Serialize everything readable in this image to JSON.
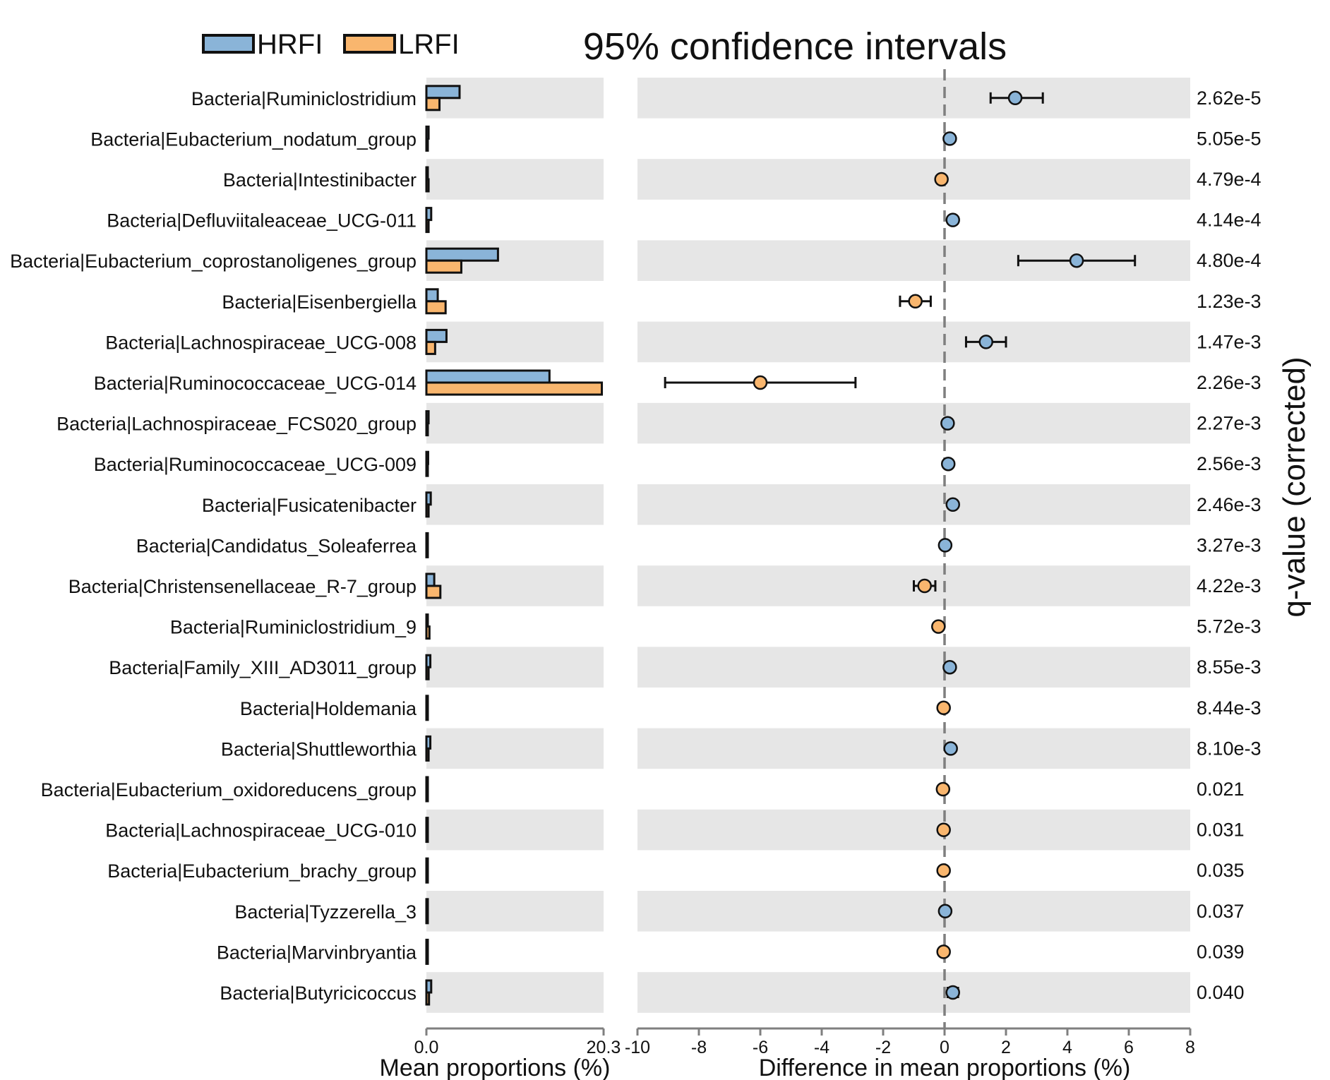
{
  "chart_data": {
    "type": "extended-error-bar",
    "title": "95% confidence intervals",
    "legend": [
      {
        "name": "HRFI",
        "color": "#8ab4d8"
      },
      {
        "name": "LRFI",
        "color": "#f9b66e"
      }
    ],
    "colors": {
      "HRFI": "#8ab4d8",
      "LRFI": "#f9b66e",
      "band": "#e6e6e6",
      "axis": "#7f7f7f"
    },
    "left_panel": {
      "xlabel": "Mean proportions (%)",
      "xlim": [
        0,
        20.3
      ],
      "tick_labels": [
        "0.0",
        "20.3"
      ]
    },
    "right_panel": {
      "xlabel": "Difference in mean proportions (%)",
      "xlim": [
        -10,
        8
      ],
      "tick_labels": [
        "-10",
        "-8",
        "-6",
        "-4",
        "-2",
        "0",
        "2",
        "4",
        "6",
        "8"
      ]
    },
    "qvalue_label": "q-value (corrected)",
    "rows": [
      {
        "label": "Bacteria|Ruminiclostridium",
        "hrfi": 3.8,
        "lrfi": 1.5,
        "diff": 2.3,
        "ci": [
          1.5,
          3.2
        ],
        "group": "HRFI",
        "q": "2.62e-5"
      },
      {
        "label": "Bacteria|Eubacterium_nodatum_group",
        "hrfi": 0.25,
        "lrfi": 0.1,
        "diff": 0.17,
        "ci": [
          0.1,
          0.24
        ],
        "group": "HRFI",
        "q": "5.05e-5"
      },
      {
        "label": "Bacteria|Intestinibacter",
        "hrfi": 0.1,
        "lrfi": 0.25,
        "diff": -0.1,
        "ci": [
          -0.16,
          -0.04
        ],
        "group": "LRFI",
        "q": "4.79e-4"
      },
      {
        "label": "Bacteria|Defluviitaleaceae_UCG-011",
        "hrfi": 0.55,
        "lrfi": 0.25,
        "diff": 0.27,
        "ci": [
          0.18,
          0.36
        ],
        "group": "HRFI",
        "q": "4.14e-4"
      },
      {
        "label": "Bacteria|Eubacterium_coprostanoligenes_group",
        "hrfi": 8.2,
        "lrfi": 4.0,
        "diff": 4.3,
        "ci": [
          2.4,
          6.2
        ],
        "group": "HRFI",
        "q": "4.80e-4"
      },
      {
        "label": "Bacteria|Eisenbergiella",
        "hrfi": 1.3,
        "lrfi": 2.2,
        "diff": -0.95,
        "ci": [
          -1.45,
          -0.45
        ],
        "group": "LRFI",
        "q": "1.23e-3"
      },
      {
        "label": "Bacteria|Lachnospiraceae_UCG-008",
        "hrfi": 2.3,
        "lrfi": 1.0,
        "diff": 1.35,
        "ci": [
          0.7,
          2.0
        ],
        "group": "HRFI",
        "q": "1.47e-3"
      },
      {
        "label": "Bacteria|Ruminococcaceae_UCG-014",
        "hrfi": 14.1,
        "lrfi": 20.1,
        "diff": -6.0,
        "ci": [
          -9.1,
          -2.9
        ],
        "group": "LRFI",
        "q": "2.26e-3"
      },
      {
        "label": "Bacteria|Lachnospiraceae_FCS020_group",
        "hrfi": 0.25,
        "lrfi": 0.1,
        "diff": 0.1,
        "ci": [
          0.05,
          0.15
        ],
        "group": "HRFI",
        "q": "2.27e-3"
      },
      {
        "label": "Bacteria|Ruminococcaceae_UCG-009",
        "hrfi": 0.2,
        "lrfi": 0.1,
        "diff": 0.12,
        "ci": [
          0.07,
          0.17
        ],
        "group": "HRFI",
        "q": "2.56e-3"
      },
      {
        "label": "Bacteria|Fusicatenibacter",
        "hrfi": 0.5,
        "lrfi": 0.25,
        "diff": 0.27,
        "ci": [
          0.18,
          0.36
        ],
        "group": "HRFI",
        "q": "2.46e-3"
      },
      {
        "label": "Bacteria|Candidatus_Soleaferrea",
        "hrfi": 0.1,
        "lrfi": 0.05,
        "diff": 0.02,
        "ci": [
          -0.02,
          0.06
        ],
        "group": "HRFI",
        "q": "3.27e-3"
      },
      {
        "label": "Bacteria|Christensenellaceae_R-7_group",
        "hrfi": 0.9,
        "lrfi": 1.6,
        "diff": -0.65,
        "ci": [
          -1.0,
          -0.3
        ],
        "group": "LRFI",
        "q": "4.22e-3"
      },
      {
        "label": "Bacteria|Ruminiclostridium_9",
        "hrfi": 0.15,
        "lrfi": 0.35,
        "diff": -0.2,
        "ci": [
          -0.27,
          -0.13
        ],
        "group": "LRFI",
        "q": "5.72e-3"
      },
      {
        "label": "Bacteria|Family_XIII_AD3011_group",
        "hrfi": 0.45,
        "lrfi": 0.25,
        "diff": 0.17,
        "ci": [
          0.1,
          0.24
        ],
        "group": "HRFI",
        "q": "8.55e-3"
      },
      {
        "label": "Bacteria|Holdemania",
        "hrfi": 0.1,
        "lrfi": 0.15,
        "diff": -0.03,
        "ci": [
          -0.07,
          0.01
        ],
        "group": "LRFI",
        "q": "8.44e-3"
      },
      {
        "label": "Bacteria|Shuttleworthia",
        "hrfi": 0.45,
        "lrfi": 0.25,
        "diff": 0.2,
        "ci": [
          0.13,
          0.27
        ],
        "group": "HRFI",
        "q": "8.10e-3"
      },
      {
        "label": "Bacteria|Eubacterium_oxidoreducens_group",
        "hrfi": 0.05,
        "lrfi": 0.1,
        "diff": -0.05,
        "ci": [
          -0.09,
          -0.01
        ],
        "group": "LRFI",
        "q": "0.021"
      },
      {
        "label": "Bacteria|Lachnospiraceae_UCG-010",
        "hrfi": 0.1,
        "lrfi": 0.15,
        "diff": -0.03,
        "ci": [
          -0.07,
          0.01
        ],
        "group": "LRFI",
        "q": "0.031"
      },
      {
        "label": "Bacteria|Eubacterium_brachy_group",
        "hrfi": 0.1,
        "lrfi": 0.15,
        "diff": -0.03,
        "ci": [
          -0.07,
          0.01
        ],
        "group": "LRFI",
        "q": "0.035"
      },
      {
        "label": "Bacteria|Tyzzerella_3",
        "hrfi": 0.15,
        "lrfi": 0.1,
        "diff": 0.02,
        "ci": [
          -0.02,
          0.06
        ],
        "group": "HRFI",
        "q": "0.037"
      },
      {
        "label": "Bacteria|Marvinbryantia",
        "hrfi": 0.05,
        "lrfi": 0.1,
        "diff": -0.03,
        "ci": [
          -0.07,
          0.01
        ],
        "group": "LRFI",
        "q": "0.039"
      },
      {
        "label": "Bacteria|Butyricicoccus",
        "hrfi": 0.55,
        "lrfi": 0.3,
        "diff": 0.27,
        "ci": [
          0.1,
          0.44
        ],
        "group": "HRFI",
        "q": "0.040"
      }
    ]
  }
}
